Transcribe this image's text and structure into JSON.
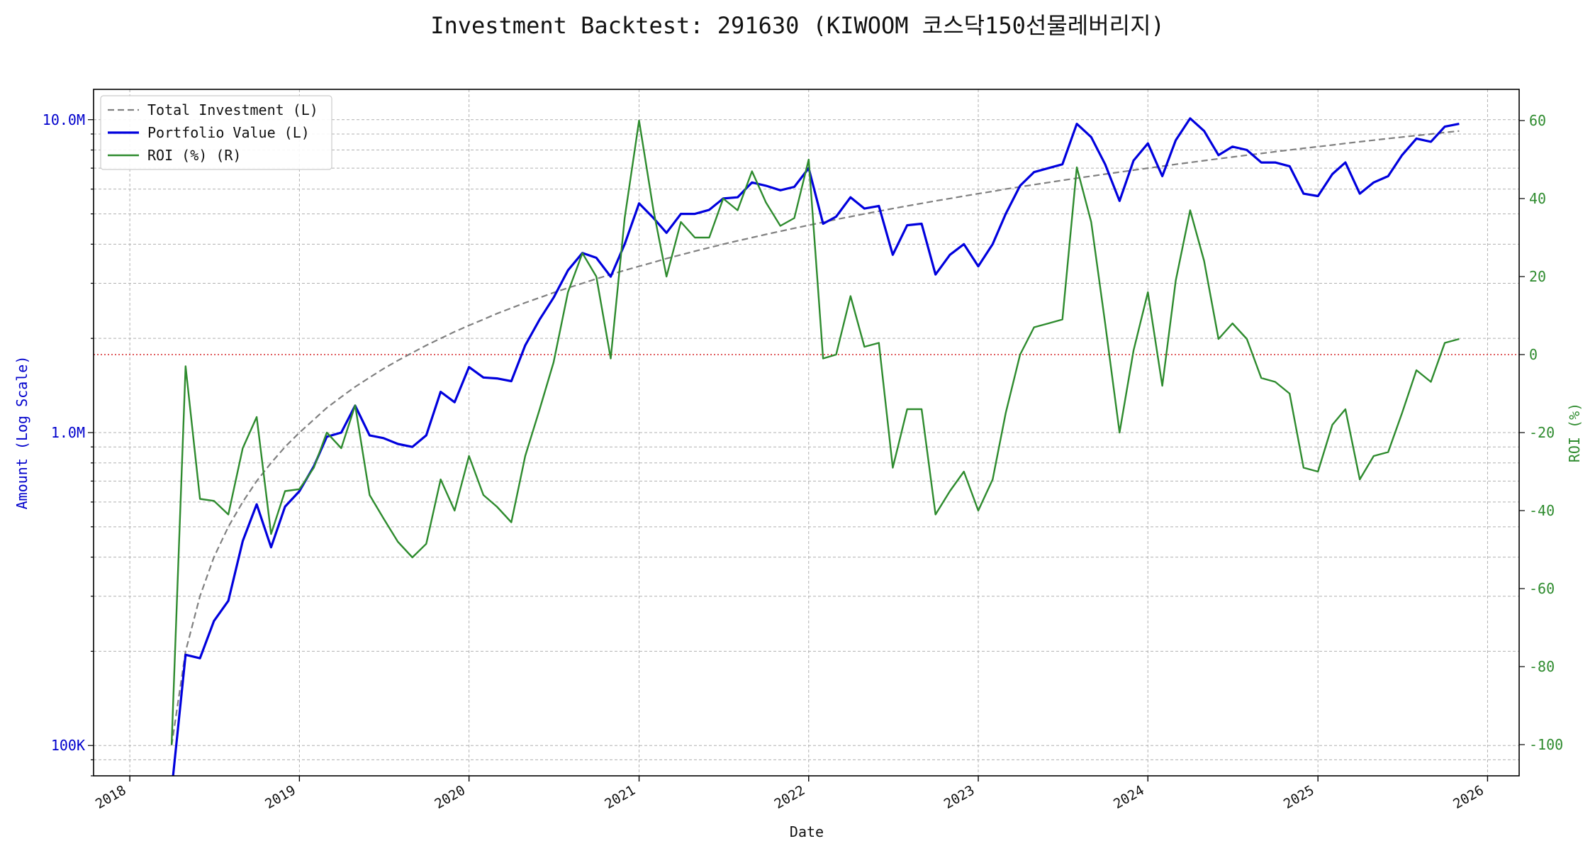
{
  "chart_data": {
    "type": "line",
    "title": "Investment Backtest: 291630 (KIWOOM 코스닥150선물레버리지)",
    "xlabel": "Date",
    "ylabel_left": "Amount (Log Scale)",
    "ylabel_right": "ROI (%)",
    "x_ticks": [
      "2018",
      "2019",
      "2020",
      "2021",
      "2022",
      "2023",
      "2024",
      "2025",
      "2026"
    ],
    "y_left_ticks": [
      "100K",
      "1.0M",
      "10.0M"
    ],
    "y_right_ticks": [
      "60",
      "40",
      "20",
      "0",
      "-20",
      "-40",
      "-60",
      "-80",
      "-100"
    ],
    "y_left_scale": "log",
    "y_left_range": [
      80000,
      12500000
    ],
    "y_right_range": [
      -108,
      68
    ],
    "x_range": [
      "2017-10-15",
      "2026-03-10"
    ],
    "grid": true,
    "legend_position": "top-left",
    "zero_line_color": "#d62728",
    "colors": {
      "total_investment": "#808080",
      "portfolio_value": "#0000dd",
      "roi": "#2e8b2e",
      "left_axis_text": "#0000cc",
      "right_axis_text": "#2e8b2e"
    },
    "x": [
      "2018-04-01",
      "2018-05-01",
      "2018-06-01",
      "2018-07-01",
      "2018-08-01",
      "2018-09-01",
      "2018-10-01",
      "2018-11-01",
      "2018-12-01",
      "2019-01-01",
      "2019-02-01",
      "2019-03-01",
      "2019-04-01",
      "2019-05-01",
      "2019-06-01",
      "2019-07-01",
      "2019-08-01",
      "2019-09-01",
      "2019-10-01",
      "2019-11-01",
      "2019-12-01",
      "2020-01-01",
      "2020-02-01",
      "2020-03-01",
      "2020-04-01",
      "2020-05-01",
      "2020-06-01",
      "2020-07-01",
      "2020-08-01",
      "2020-09-01",
      "2020-10-01",
      "2020-11-01",
      "2020-12-01",
      "2021-01-01",
      "2021-02-01",
      "2021-03-01",
      "2021-04-01",
      "2021-05-01",
      "2021-06-01",
      "2021-07-01",
      "2021-08-01",
      "2021-09-01",
      "2021-10-01",
      "2021-11-01",
      "2021-12-01",
      "2022-01-01",
      "2022-02-01",
      "2022-03-01",
      "2022-04-01",
      "2022-05-01",
      "2022-06-01",
      "2022-07-01",
      "2022-08-01",
      "2022-09-01",
      "2022-10-01",
      "2022-11-01",
      "2022-12-01",
      "2023-01-01",
      "2023-02-01",
      "2023-03-01",
      "2023-04-01",
      "2023-05-01",
      "2023-06-01",
      "2023-07-01",
      "2023-08-01",
      "2023-09-01",
      "2023-10-01",
      "2023-11-01",
      "2023-12-01",
      "2024-01-01",
      "2024-02-01",
      "2024-03-01",
      "2024-04-01",
      "2024-05-01",
      "2024-06-01",
      "2024-07-01",
      "2024-08-01",
      "2024-09-01",
      "2024-10-01",
      "2024-11-01",
      "2024-12-01",
      "2025-01-01",
      "2025-02-01",
      "2025-03-01",
      "2025-04-01",
      "2025-05-01",
      "2025-06-01",
      "2025-07-01",
      "2025-08-01",
      "2025-09-01",
      "2025-10-01",
      "2025-11-01"
    ],
    "series": [
      {
        "name": "Total Investment (L)",
        "style": "dashed",
        "values": [
          100000,
          200000,
          300000,
          400000,
          500000,
          600000,
          700000,
          800000,
          900000,
          1000000,
          1100000,
          1200000,
          1300000,
          1400000,
          1500000,
          1600000,
          1700000,
          1800000,
          1900000,
          2000000,
          2100000,
          2200000,
          2300000,
          2400000,
          2500000,
          2600000,
          2700000,
          2800000,
          2900000,
          3000000,
          3100000,
          3200000,
          3300000,
          3400000,
          3500000,
          3600000,
          3700000,
          3800000,
          3900000,
          4000000,
          4100000,
          4200000,
          4300000,
          4400000,
          4500000,
          4600000,
          4700000,
          4800000,
          4900000,
          5000000,
          5100000,
          5200000,
          5300000,
          5400000,
          5500000,
          5600000,
          5700000,
          5800000,
          5900000,
          6000000,
          6100000,
          6200000,
          6300000,
          6400000,
          6500000,
          6600000,
          6700000,
          6800000,
          6900000,
          7000000,
          7100000,
          7200000,
          7300000,
          7400000,
          7500000,
          7600000,
          7700000,
          7800000,
          7900000,
          8000000,
          8100000,
          8200000,
          8300000,
          8400000,
          8500000,
          8600000,
          8700000,
          8800000,
          8900000,
          9000000,
          9100000,
          9200000
        ]
      },
      {
        "name": "Portfolio Value (L)",
        "style": "solid",
        "values": [
          0,
          195000,
          190000,
          250000,
          290000,
          450000,
          590000,
          430000,
          580000,
          650000,
          780000,
          970000,
          1000000,
          1220000,
          980000,
          960000,
          920000,
          900000,
          980000,
          1350000,
          1250000,
          1620000,
          1500000,
          1490000,
          1460000,
          1900000,
          2300000,
          2700000,
          3300000,
          3750000,
          3620000,
          3150000,
          4000000,
          5400000,
          4850000,
          4350000,
          5000000,
          5000000,
          5150000,
          5600000,
          5650000,
          6300000,
          6150000,
          5950000,
          6100000,
          7000000,
          4650000,
          4900000,
          5650000,
          5200000,
          5300000,
          3700000,
          4600000,
          4650000,
          3200000,
          3700000,
          4000000,
          3400000,
          4000000,
          5000000,
          6150000,
          6800000,
          7000000,
          7200000,
          9700000,
          8800000,
          7200000,
          5500000,
          7400000,
          8400000,
          6600000,
          8600000,
          10100000,
          9200000,
          7700000,
          8200000,
          8000000,
          7300000,
          7300000,
          7100000,
          5800000,
          5700000,
          6700000,
          7300000,
          5800000,
          6300000,
          6600000,
          7700000,
          8700000,
          8500000,
          9500000,
          9700000
        ]
      },
      {
        "name": "ROI (%) (R)",
        "style": "solid",
        "values": [
          -100,
          -3,
          -37,
          -37.5,
          -41,
          -24,
          -16,
          -46,
          -35,
          -34.5,
          -29,
          -20,
          -24,
          -13,
          -36,
          -42,
          -48,
          -52,
          -48.5,
          -32,
          -40,
          -26,
          -36,
          -39,
          -43,
          -26,
          -14,
          -2,
          16,
          26,
          20,
          -1,
          35,
          60,
          37,
          20,
          34,
          30,
          30,
          40,
          37,
          47,
          39,
          33,
          35,
          50,
          -1,
          0,
          15,
          2,
          3,
          -29,
          -14,
          -14,
          -41,
          -35,
          -30,
          -40,
          -32,
          -15,
          0,
          7,
          8,
          9,
          48,
          34,
          8,
          -20,
          1,
          16,
          -8,
          19,
          37,
          24,
          4,
          8,
          4,
          -6,
          -7,
          -10,
          -29,
          -30,
          -18,
          -14,
          -32,
          -26,
          -25,
          -15,
          -4,
          -7,
          3,
          4
        ]
      }
    ]
  }
}
